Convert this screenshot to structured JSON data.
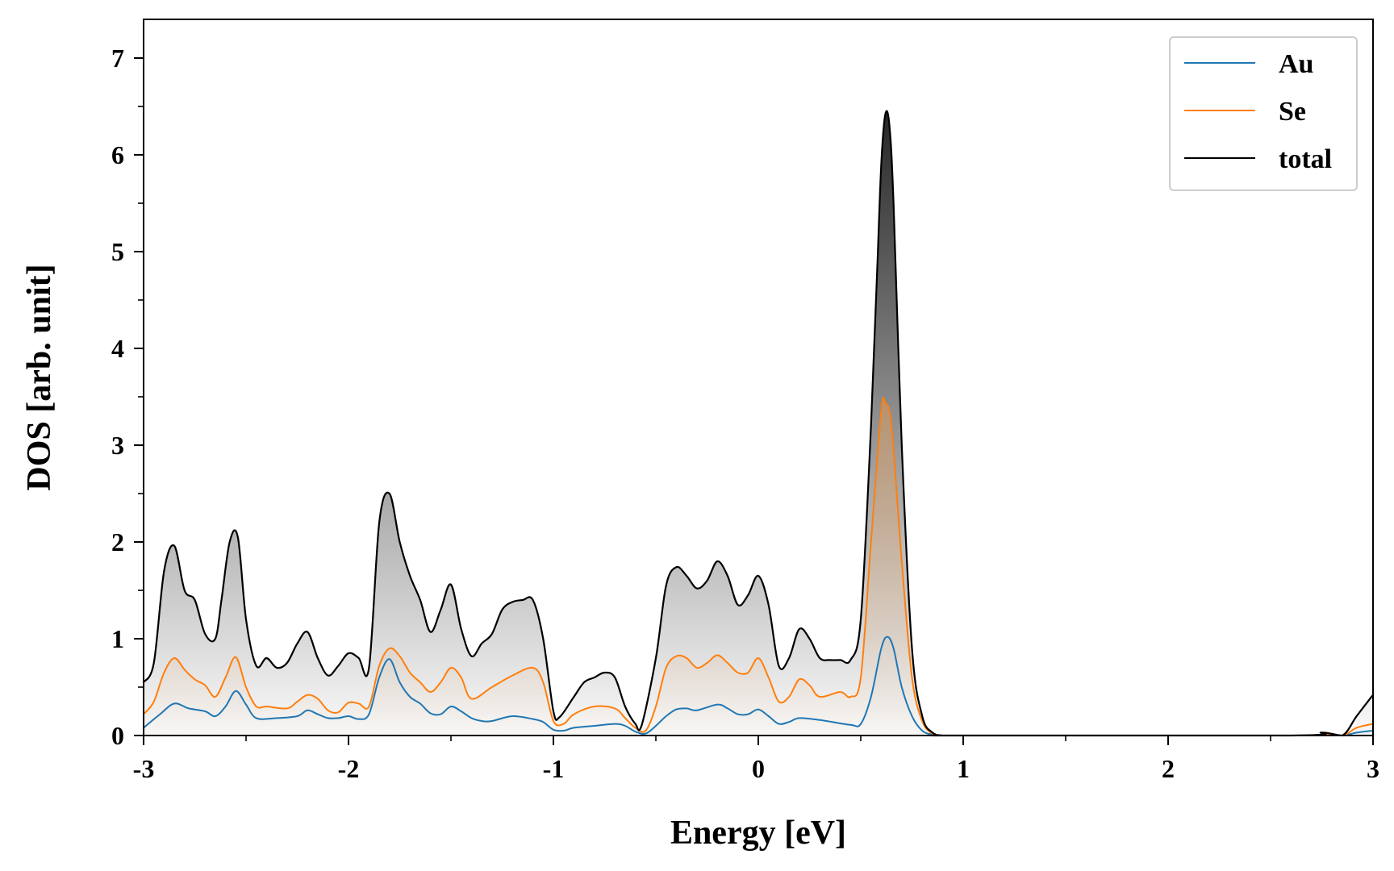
{
  "chart_data": {
    "type": "line",
    "title": "",
    "xlabel": "Energy [eV]",
    "ylabel": "DOS [arb. unit]",
    "xlim": [
      -3,
      3
    ],
    "ylim": [
      0,
      7.4
    ],
    "xticks": [
      -3,
      -2,
      -1,
      0,
      1,
      2,
      3
    ],
    "xtick_labels": [
      "-3",
      "-2",
      "-1",
      "0",
      "1",
      "2",
      "3"
    ],
    "yticks": [
      0,
      1,
      2,
      3,
      4,
      5,
      6,
      7
    ],
    "ytick_labels": [
      "0",
      "1",
      "2",
      "3",
      "4",
      "5",
      "6",
      "7"
    ],
    "grid": false,
    "legend_position": "top-right",
    "fill_under_curves": true,
    "series": [
      {
        "name": "Au",
        "color": "#1f77b4",
        "fill": "#cccccc",
        "x": [
          -3.0,
          -2.92,
          -2.85,
          -2.78,
          -2.7,
          -2.65,
          -2.6,
          -2.55,
          -2.5,
          -2.45,
          -2.35,
          -2.25,
          -2.2,
          -2.15,
          -2.1,
          -2.05,
          -2.0,
          -1.95,
          -1.9,
          -1.85,
          -1.8,
          -1.75,
          -1.7,
          -1.65,
          -1.6,
          -1.55,
          -1.5,
          -1.45,
          -1.4,
          -1.35,
          -1.3,
          -1.2,
          -1.1,
          -1.05,
          -1.0,
          -0.95,
          -0.9,
          -0.8,
          -0.7,
          -0.65,
          -0.6,
          -0.55,
          -0.5,
          -0.45,
          -0.4,
          -0.35,
          -0.3,
          -0.2,
          -0.15,
          -0.1,
          -0.05,
          0.0,
          0.05,
          0.1,
          0.15,
          0.2,
          0.3,
          0.45,
          0.5,
          0.55,
          0.6,
          0.63,
          0.66,
          0.7,
          0.75,
          0.8,
          0.85,
          0.9,
          1.0,
          2.6,
          2.75,
          2.85,
          2.92,
          3.0
        ],
        "values": [
          0.08,
          0.22,
          0.33,
          0.28,
          0.25,
          0.2,
          0.3,
          0.46,
          0.32,
          0.18,
          0.18,
          0.2,
          0.26,
          0.22,
          0.18,
          0.18,
          0.2,
          0.17,
          0.22,
          0.6,
          0.79,
          0.55,
          0.4,
          0.33,
          0.23,
          0.22,
          0.3,
          0.25,
          0.18,
          0.15,
          0.15,
          0.2,
          0.17,
          0.14,
          0.06,
          0.05,
          0.08,
          0.1,
          0.12,
          0.1,
          0.04,
          0.02,
          0.1,
          0.2,
          0.27,
          0.28,
          0.26,
          0.32,
          0.28,
          0.22,
          0.22,
          0.27,
          0.2,
          0.12,
          0.14,
          0.18,
          0.16,
          0.11,
          0.12,
          0.4,
          0.9,
          1.02,
          0.9,
          0.5,
          0.2,
          0.05,
          0.01,
          0.0,
          0.0,
          0.0,
          0.005,
          0.0,
          0.03,
          0.05
        ]
      },
      {
        "name": "Se",
        "color": "#ff7f0e",
        "fill": "#e8a05a",
        "x": [
          -3.0,
          -2.95,
          -2.9,
          -2.85,
          -2.8,
          -2.75,
          -2.7,
          -2.65,
          -2.6,
          -2.55,
          -2.5,
          -2.45,
          -2.4,
          -2.3,
          -2.25,
          -2.2,
          -2.15,
          -2.1,
          -2.05,
          -2.0,
          -1.95,
          -1.9,
          -1.85,
          -1.8,
          -1.75,
          -1.7,
          -1.65,
          -1.6,
          -1.55,
          -1.5,
          -1.45,
          -1.4,
          -1.3,
          -1.2,
          -1.1,
          -1.05,
          -1.0,
          -0.95,
          -0.9,
          -0.8,
          -0.7,
          -0.65,
          -0.6,
          -0.55,
          -0.5,
          -0.45,
          -0.4,
          -0.35,
          -0.3,
          -0.25,
          -0.2,
          -0.15,
          -0.1,
          -0.05,
          0.0,
          0.05,
          0.1,
          0.15,
          0.2,
          0.25,
          0.3,
          0.4,
          0.45,
          0.5,
          0.55,
          0.6,
          0.62,
          0.65,
          0.7,
          0.75,
          0.8,
          0.85,
          0.9,
          1.0,
          2.6,
          2.75,
          2.85,
          2.92,
          3.0
        ],
        "values": [
          0.22,
          0.35,
          0.65,
          0.8,
          0.68,
          0.58,
          0.52,
          0.4,
          0.6,
          0.81,
          0.5,
          0.3,
          0.3,
          0.28,
          0.35,
          0.42,
          0.38,
          0.26,
          0.24,
          0.34,
          0.33,
          0.3,
          0.72,
          0.9,
          0.82,
          0.65,
          0.55,
          0.45,
          0.55,
          0.7,
          0.6,
          0.38,
          0.5,
          0.62,
          0.7,
          0.55,
          0.15,
          0.12,
          0.22,
          0.3,
          0.28,
          0.18,
          0.08,
          0.05,
          0.3,
          0.7,
          0.82,
          0.8,
          0.7,
          0.75,
          0.83,
          0.75,
          0.65,
          0.65,
          0.8,
          0.6,
          0.35,
          0.4,
          0.58,
          0.52,
          0.4,
          0.45,
          0.4,
          0.6,
          2.0,
          3.35,
          3.43,
          3.2,
          1.8,
          0.6,
          0.15,
          0.02,
          0.0,
          0.0,
          0.0,
          0.01,
          0.0,
          0.08,
          0.12
        ]
      },
      {
        "name": "total",
        "color": "#000000",
        "fill": "#1a1a1a",
        "x": [
          -3.0,
          -2.95,
          -2.9,
          -2.85,
          -2.8,
          -2.75,
          -2.7,
          -2.65,
          -2.62,
          -2.58,
          -2.54,
          -2.5,
          -2.45,
          -2.4,
          -2.35,
          -2.3,
          -2.25,
          -2.2,
          -2.15,
          -2.1,
          -2.05,
          -2.0,
          -1.95,
          -1.9,
          -1.85,
          -1.8,
          -1.75,
          -1.7,
          -1.65,
          -1.6,
          -1.55,
          -1.5,
          -1.45,
          -1.4,
          -1.35,
          -1.3,
          -1.25,
          -1.2,
          -1.15,
          -1.1,
          -1.05,
          -1.0,
          -0.97,
          -0.9,
          -0.85,
          -0.8,
          -0.75,
          -0.7,
          -0.65,
          -0.6,
          -0.57,
          -0.5,
          -0.45,
          -0.4,
          -0.35,
          -0.3,
          -0.25,
          -0.2,
          -0.15,
          -0.1,
          -0.05,
          0.0,
          0.05,
          0.1,
          0.15,
          0.2,
          0.25,
          0.3,
          0.35,
          0.4,
          0.45,
          0.5,
          0.55,
          0.58,
          0.6,
          0.62,
          0.64,
          0.66,
          0.7,
          0.75,
          0.8,
          0.85,
          0.9,
          1.0,
          2.6,
          2.75,
          2.85,
          2.92,
          3.0
        ],
        "values": [
          0.55,
          0.75,
          1.7,
          1.96,
          1.5,
          1.4,
          1.05,
          1.0,
          1.4,
          2.0,
          2.05,
          1.2,
          0.72,
          0.8,
          0.7,
          0.75,
          0.95,
          1.07,
          0.8,
          0.62,
          0.72,
          0.85,
          0.8,
          0.7,
          2.2,
          2.5,
          2.0,
          1.65,
          1.4,
          1.07,
          1.3,
          1.56,
          1.1,
          0.82,
          0.95,
          1.05,
          1.3,
          1.38,
          1.4,
          1.4,
          1.0,
          0.25,
          0.19,
          0.4,
          0.55,
          0.6,
          0.65,
          0.6,
          0.3,
          0.12,
          0.1,
          0.8,
          1.55,
          1.74,
          1.65,
          1.52,
          1.6,
          1.8,
          1.65,
          1.35,
          1.45,
          1.65,
          1.35,
          0.72,
          0.8,
          1.1,
          1.0,
          0.8,
          0.78,
          0.78,
          0.78,
          1.2,
          3.2,
          4.8,
          5.9,
          6.42,
          6.3,
          5.5,
          3.0,
          0.9,
          0.2,
          0.03,
          0.0,
          0.0,
          0.0,
          0.03,
          0.0,
          0.2,
          0.42
        ]
      }
    ]
  }
}
